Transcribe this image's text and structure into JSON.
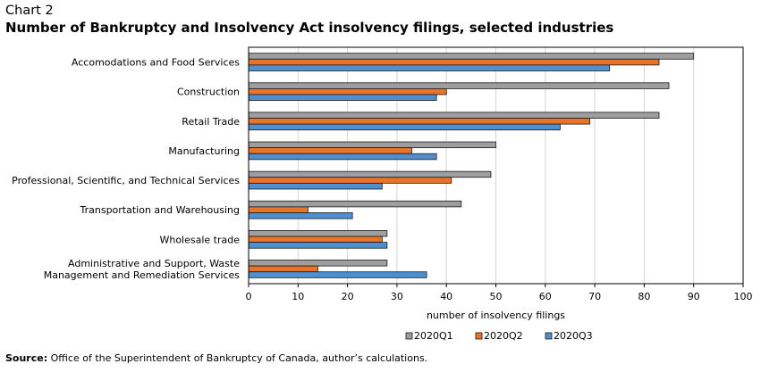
{
  "header": {
    "chart_number": "Chart 2",
    "title": "Number of Bankruptcy and Insolvency Act insolvency  filings,  selected industries"
  },
  "footer": {
    "source_label": "Source:",
    "source_text": " Office of the Superintendent of Bankruptcy of Canada, author’s calculations."
  },
  "chart_data": {
    "type": "bar",
    "orientation": "horizontal",
    "title": "Number of Bankruptcy and Insolvency Act insolvency  filings,  selected industries",
    "xlabel": "number of insolvency filings",
    "ylabel": "",
    "xlim": [
      0,
      100
    ],
    "xticks": [
      0,
      10,
      20,
      30,
      40,
      50,
      60,
      70,
      80,
      90,
      100
    ],
    "grid": true,
    "legend_position": "bottom",
    "categories": [
      [
        "Accomodations and Food Services"
      ],
      [
        "Construction"
      ],
      [
        "Retail Trade"
      ],
      [
        "Manufacturing"
      ],
      [
        "Professional, Scientific, and Technical Services"
      ],
      [
        "Transportation and Warehousing"
      ],
      [
        "Wholesale trade"
      ],
      [
        "Administrative and Support, Waste",
        "Management and Remediation Services"
      ]
    ],
    "series": [
      {
        "name": "2020Q1",
        "color": "#9e9e9e",
        "values": [
          90,
          85,
          83,
          50,
          49,
          43,
          28,
          28
        ]
      },
      {
        "name": "2020Q2",
        "color": "#e8742b",
        "values": [
          83,
          40,
          69,
          33,
          41,
          12,
          27,
          14
        ]
      },
      {
        "name": "2020Q3",
        "color": "#4f8fd0",
        "values": [
          73,
          38,
          63,
          38,
          27,
          21,
          28,
          36
        ]
      }
    ]
  }
}
